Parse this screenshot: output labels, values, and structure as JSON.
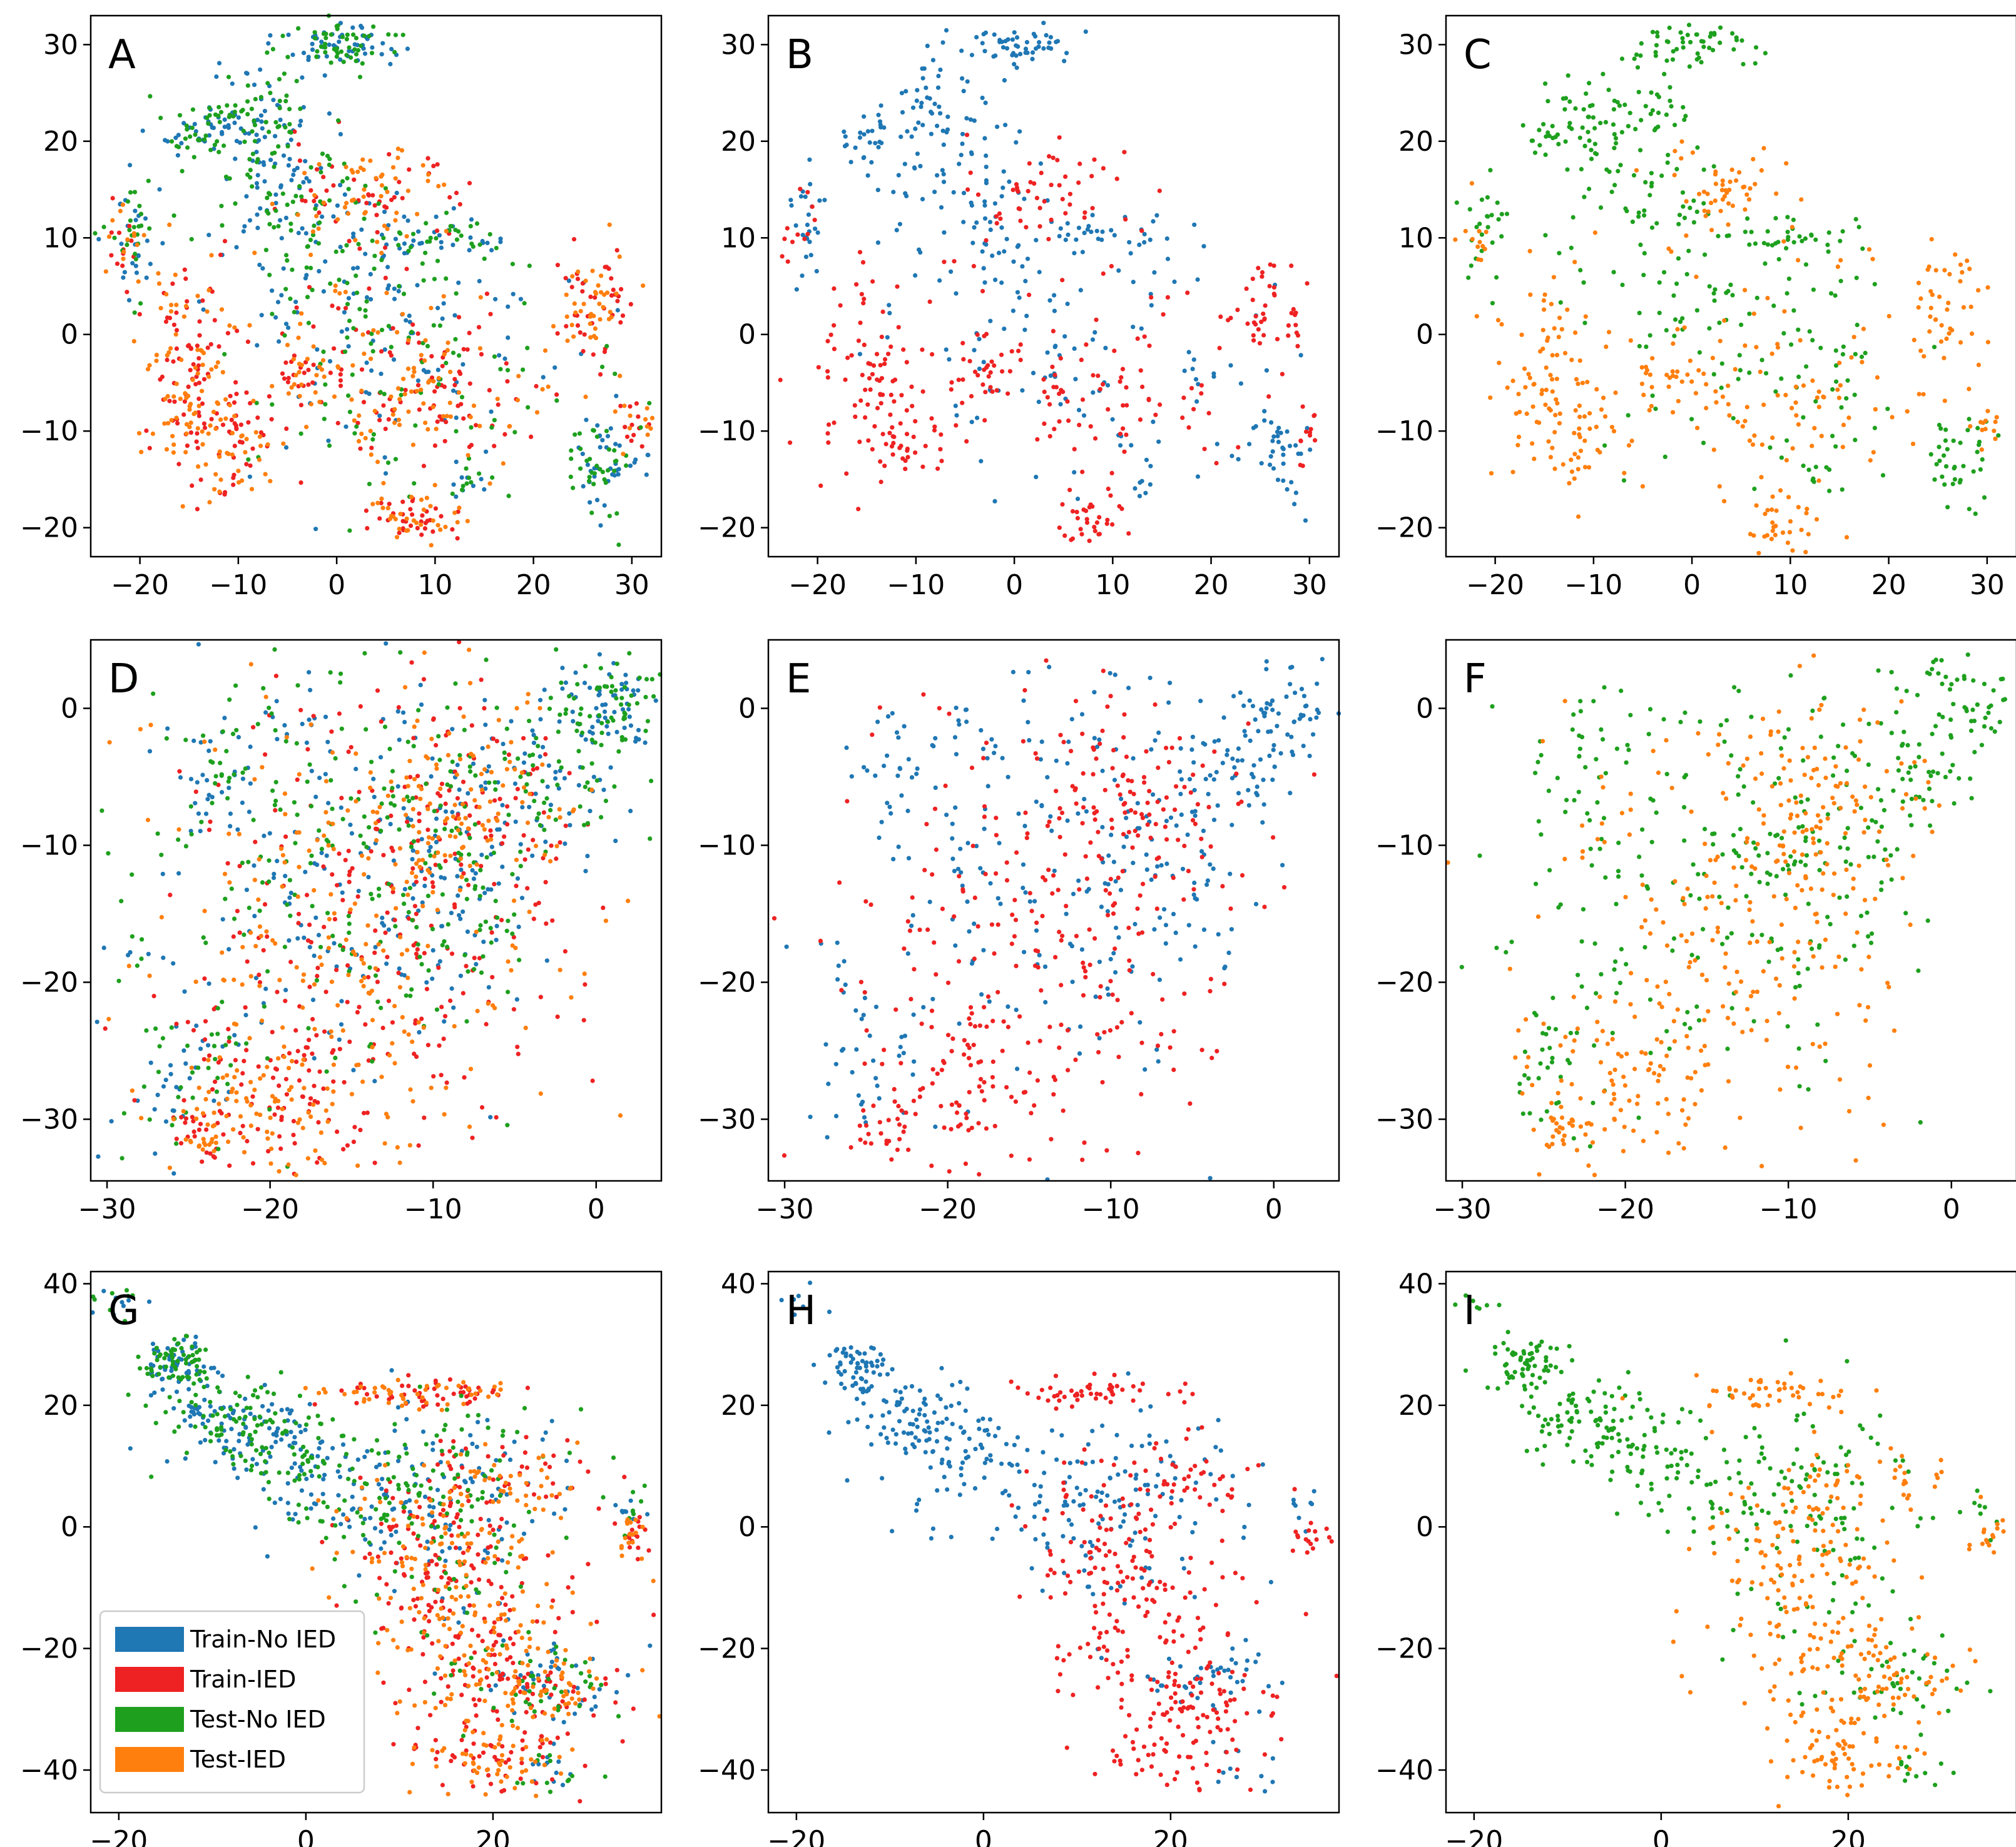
{
  "colors": {
    "train_no_ied": "#1f77b4",
    "train_ied": "#ee2222",
    "test_no_ied": "#1ea01e",
    "test_ied": "#ff7f0e"
  },
  "legend": {
    "entries": [
      {
        "label": "Train-No IED",
        "color": "#1f77b4"
      },
      {
        "label": "Train-IED",
        "color": "#ee2222"
      },
      {
        "label": "Test-No IED",
        "color": "#1ea01e"
      },
      {
        "label": "Test-IED",
        "color": "#ff7f0e"
      }
    ]
  },
  "chart_data": [
    {
      "type": "scatter",
      "panel": "A",
      "row": 0,
      "col": 0,
      "label": "A",
      "groups": [
        "train_no_ied",
        "train_ied",
        "test_no_ied",
        "test_ied"
      ],
      "xlim": [
        -25,
        33
      ],
      "ylim": [
        -23,
        33
      ],
      "xticks": [
        -20,
        -10,
        0,
        10,
        20,
        30
      ],
      "yticks": [
        -20,
        -10,
        0,
        10,
        20,
        30
      ],
      "clusters": {
        "noied": [
          [
            0,
            30,
            3,
            1.2,
            0.13
          ],
          [
            -8,
            22,
            3,
            3,
            0.12
          ],
          [
            -14,
            21,
            2,
            1.5,
            0.06
          ],
          [
            -21,
            11,
            1.2,
            3,
            0.06
          ],
          [
            10,
            10,
            4,
            1.2,
            0.07
          ],
          [
            2,
            4,
            4,
            4,
            0.07
          ],
          [
            13,
            -15,
            1,
            1,
            0.02
          ],
          [
            27,
            -13,
            2,
            2.5,
            0.09
          ],
          [
            8,
            -3,
            9,
            7,
            0.2
          ],
          [
            -5,
            14,
            5,
            6,
            0.18
          ]
        ],
        "ied": [
          [
            3,
            15,
            4,
            2.5,
            0.12
          ],
          [
            -15,
            -3,
            2.5,
            5,
            0.15
          ],
          [
            -12,
            -11,
            3,
            3,
            0.12
          ],
          [
            -3,
            -4,
            2,
            1.5,
            0.05
          ],
          [
            8,
            -19,
            2.5,
            1.5,
            0.08
          ],
          [
            26,
            3,
            2,
            3,
            0.1
          ],
          [
            10,
            -7,
            6,
            3,
            0.12
          ],
          [
            4,
            -2,
            10,
            7,
            0.15
          ],
          [
            30,
            -10,
            1,
            1.5,
            0.03
          ],
          [
            -22,
            10,
            1,
            2,
            0.03
          ]
        ]
      }
    },
    {
      "type": "scatter",
      "panel": "B",
      "row": 0,
      "col": 1,
      "label": "B",
      "groups": [
        "train_no_ied",
        "train_ied"
      ],
      "xlim": [
        -25,
        33
      ],
      "ylim": [
        -23,
        33
      ],
      "xticks": [
        -20,
        -10,
        0,
        10,
        20,
        30
      ],
      "yticks": [
        -20,
        -10,
        0,
        10,
        20,
        30
      ],
      "clusters": "A"
    },
    {
      "type": "scatter",
      "panel": "C",
      "row": 0,
      "col": 2,
      "label": "C",
      "groups": [
        "test_no_ied",
        "test_ied"
      ],
      "xlim": [
        -25,
        33
      ],
      "ylim": [
        -23,
        33
      ],
      "xticks": [
        -20,
        -10,
        0,
        10,
        20,
        30
      ],
      "yticks": [
        -20,
        -10,
        0,
        10,
        20,
        30
      ],
      "clusters": "A"
    },
    {
      "type": "scatter",
      "panel": "D",
      "row": 1,
      "col": 0,
      "label": "D",
      "groups": [
        "train_no_ied",
        "train_ied",
        "test_no_ied",
        "test_ied"
      ],
      "xlim": [
        -31,
        4
      ],
      "ylim": [
        -34.5,
        5
      ],
      "xticks": [
        -30,
        -20,
        -10,
        0
      ],
      "yticks": [
        -30,
        -20,
        -10,
        0
      ],
      "clusters": {
        "noied": [
          [
            1,
            0.5,
            1.5,
            1.5,
            0.12
          ],
          [
            -2,
            -4,
            2,
            3,
            0.12
          ],
          [
            -23,
            -5,
            1.5,
            2.5,
            0.06
          ],
          [
            -25,
            -26,
            2,
            3,
            0.08
          ],
          [
            -15,
            -13,
            6,
            8,
            0.35
          ],
          [
            -19,
            -1,
            2,
            1.5,
            0.03
          ],
          [
            -28,
            -18,
            1,
            1,
            0.01
          ],
          [
            -8,
            -10,
            3,
            6,
            0.23
          ]
        ],
        "ied": [
          [
            -14,
            -16,
            6,
            8,
            0.55
          ],
          [
            -20,
            -28,
            3,
            3,
            0.2
          ],
          [
            -8,
            -7,
            3,
            4,
            0.2
          ],
          [
            -24,
            -31,
            1,
            1,
            0.05
          ]
        ]
      }
    },
    {
      "type": "scatter",
      "panel": "E",
      "row": 1,
      "col": 1,
      "label": "E",
      "groups": [
        "train_no_ied",
        "train_ied"
      ],
      "xlim": [
        -31,
        4
      ],
      "ylim": [
        -34.5,
        5
      ],
      "xticks": [
        -30,
        -20,
        -10,
        0
      ],
      "yticks": [
        -30,
        -20,
        -10,
        0
      ],
      "clusters": "D"
    },
    {
      "type": "scatter",
      "panel": "F",
      "row": 1,
      "col": 2,
      "label": "F",
      "groups": [
        "test_no_ied",
        "test_ied"
      ],
      "xlim": [
        -31,
        4
      ],
      "ylim": [
        -34.5,
        5
      ],
      "xticks": [
        -30,
        -20,
        -10,
        0
      ],
      "yticks": [
        -30,
        -20,
        -10,
        0
      ],
      "clusters": "D"
    },
    {
      "type": "scatter",
      "panel": "G",
      "row": 2,
      "col": 0,
      "label": "G",
      "groups": [
        "train_no_ied",
        "train_ied",
        "test_no_ied",
        "test_ied"
      ],
      "xlim": [
        -23,
        38
      ],
      "ylim": [
        -47,
        42
      ],
      "xticks": [
        -20,
        0,
        20
      ],
      "yticks": [
        -40,
        -20,
        0,
        20,
        40
      ],
      "clusters": {
        "noied": [
          [
            -14,
            27,
            2,
            2,
            0.15
          ],
          [
            -8,
            18,
            4,
            3,
            0.18
          ],
          [
            -2,
            12,
            4,
            3,
            0.12
          ],
          [
            10,
            5,
            8,
            5,
            0.2
          ],
          [
            15,
            0,
            6,
            10,
            0.15
          ],
          [
            25,
            -25,
            4,
            3,
            0.1
          ],
          [
            34,
            3,
            1,
            2,
            0.02
          ],
          [
            27,
            -40,
            2,
            2,
            0.03
          ],
          [
            -20,
            37,
            2,
            1.5,
            0.02
          ],
          [
            20,
            15,
            5,
            3,
            0.03
          ]
        ],
        "ied": [
          [
            12,
            22,
            5,
            1.2,
            0.12
          ],
          [
            14,
            -2,
            5,
            6,
            0.2
          ],
          [
            18,
            -20,
            6,
            8,
            0.3
          ],
          [
            20,
            -38,
            4,
            3,
            0.12
          ],
          [
            35,
            -1,
            1,
            2,
            0.04
          ],
          [
            25,
            -27,
            4,
            3,
            0.1
          ],
          [
            22,
            8,
            5,
            3,
            0.1
          ]
        ]
      }
    },
    {
      "type": "scatter",
      "panel": "H",
      "row": 2,
      "col": 1,
      "label": "H",
      "groups": [
        "train_no_ied",
        "train_ied"
      ],
      "xlim": [
        -23,
        38
      ],
      "ylim": [
        -47,
        42
      ],
      "xticks": [
        -20,
        0,
        20
      ],
      "yticks": [
        -40,
        -20,
        0,
        20,
        40
      ],
      "clusters": "G"
    },
    {
      "type": "scatter",
      "panel": "I",
      "row": 2,
      "col": 2,
      "label": "I",
      "groups": [
        "test_no_ied",
        "test_ied"
      ],
      "xlim": [
        -23,
        38
      ],
      "ylim": [
        -47,
        42
      ],
      "xticks": [
        -20,
        0,
        20
      ],
      "yticks": [
        -40,
        -20,
        0,
        20,
        40
      ],
      "clusters": "G"
    }
  ]
}
